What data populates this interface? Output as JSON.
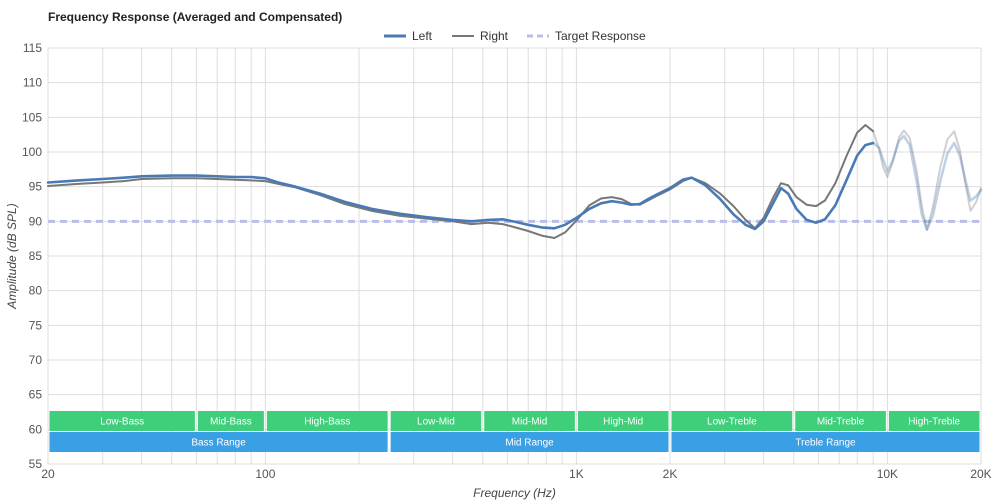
{
  "chart_data": {
    "type": "line",
    "title": "Frequency Response (Averaged and Compensated)",
    "xlabel": "Frequency (Hz)",
    "ylabel": "Amplitude (dB SPL)",
    "x_scale": "log",
    "xlim": [
      20,
      20000
    ],
    "ylim": [
      55,
      115
    ],
    "y_ticks": [
      55,
      60,
      65,
      70,
      75,
      80,
      85,
      90,
      95,
      100,
      105,
      110,
      115
    ],
    "x_ticks": [
      {
        "value": 20,
        "label": "20"
      },
      {
        "value": 100,
        "label": "100"
      },
      {
        "value": 1000,
        "label": "1K"
      },
      {
        "value": 2000,
        "label": "2K"
      },
      {
        "value": 10000,
        "label": "10K"
      },
      {
        "value": 20000,
        "label": "20K"
      }
    ],
    "legend": {
      "position": "top-center",
      "entries": [
        "Left",
        "Right",
        "Target Response"
      ]
    },
    "colors": {
      "left": "#4a7ab5",
      "right": "#777777",
      "target": "#b9bde8",
      "green_band": "#3fcf7a",
      "blue_band": "#3aa0e6"
    },
    "fade_start_hz": 9000,
    "series": [
      {
        "name": "Left",
        "points": [
          [
            20,
            95.6
          ],
          [
            25,
            95.9
          ],
          [
            30,
            96.1
          ],
          [
            35,
            96.3
          ],
          [
            40,
            96.5
          ],
          [
            50,
            96.6
          ],
          [
            60,
            96.6
          ],
          [
            70,
            96.5
          ],
          [
            80,
            96.4
          ],
          [
            90,
            96.4
          ],
          [
            100,
            96.2
          ],
          [
            110,
            95.6
          ],
          [
            125,
            95.0
          ],
          [
            150,
            94.0
          ],
          [
            180,
            92.8
          ],
          [
            220,
            91.8
          ],
          [
            270,
            91.1
          ],
          [
            330,
            90.6
          ],
          [
            400,
            90.2
          ],
          [
            460,
            90.0
          ],
          [
            520,
            90.2
          ],
          [
            580,
            90.3
          ],
          [
            640,
            89.9
          ],
          [
            700,
            89.5
          ],
          [
            780,
            89.1
          ],
          [
            850,
            89.0
          ],
          [
            920,
            89.5
          ],
          [
            1000,
            90.5
          ],
          [
            1100,
            91.8
          ],
          [
            1200,
            92.6
          ],
          [
            1300,
            92.9
          ],
          [
            1400,
            92.7
          ],
          [
            1500,
            92.4
          ],
          [
            1600,
            92.5
          ],
          [
            1700,
            93.2
          ],
          [
            1800,
            93.8
          ],
          [
            2000,
            94.8
          ],
          [
            2200,
            96.0
          ],
          [
            2350,
            96.3
          ],
          [
            2600,
            95.2
          ],
          [
            2900,
            93.2
          ],
          [
            3200,
            91.0
          ],
          [
            3500,
            89.5
          ],
          [
            3750,
            88.9
          ],
          [
            4000,
            90.0
          ],
          [
            4300,
            92.7
          ],
          [
            4550,
            94.8
          ],
          [
            4800,
            94.0
          ],
          [
            5100,
            91.8
          ],
          [
            5500,
            90.2
          ],
          [
            5900,
            89.8
          ],
          [
            6300,
            90.3
          ],
          [
            6800,
            92.3
          ],
          [
            7400,
            96.0
          ],
          [
            8000,
            99.5
          ],
          [
            8500,
            101.0
          ],
          [
            9000,
            101.3
          ],
          [
            9400,
            100.6
          ],
          [
            9700,
            98.8
          ],
          [
            10000,
            97.2
          ],
          [
            10400,
            98.8
          ],
          [
            10900,
            101.6
          ],
          [
            11300,
            102.3
          ],
          [
            11800,
            101.0
          ],
          [
            12400,
            96.0
          ],
          [
            12900,
            91.0
          ],
          [
            13400,
            88.8
          ],
          [
            14000,
            90.8
          ],
          [
            14800,
            95.8
          ],
          [
            15600,
            99.8
          ],
          [
            16400,
            101.3
          ],
          [
            17100,
            99.5
          ],
          [
            17800,
            96.0
          ],
          [
            18500,
            93.0
          ],
          [
            19300,
            93.6
          ],
          [
            20000,
            94.5
          ]
        ]
      },
      {
        "name": "Right",
        "points": [
          [
            20,
            95.1
          ],
          [
            25,
            95.4
          ],
          [
            30,
            95.6
          ],
          [
            35,
            95.8
          ],
          [
            40,
            96.1
          ],
          [
            50,
            96.2
          ],
          [
            60,
            96.2
          ],
          [
            70,
            96.1
          ],
          [
            80,
            96.0
          ],
          [
            90,
            95.9
          ],
          [
            100,
            95.8
          ],
          [
            110,
            95.4
          ],
          [
            125,
            94.9
          ],
          [
            150,
            93.8
          ],
          [
            180,
            92.5
          ],
          [
            220,
            91.5
          ],
          [
            270,
            90.8
          ],
          [
            330,
            90.4
          ],
          [
            400,
            90.0
          ],
          [
            460,
            89.6
          ],
          [
            520,
            89.8
          ],
          [
            580,
            89.6
          ],
          [
            640,
            89.1
          ],
          [
            700,
            88.6
          ],
          [
            780,
            87.9
          ],
          [
            850,
            87.6
          ],
          [
            920,
            88.4
          ],
          [
            1000,
            90.1
          ],
          [
            1100,
            92.3
          ],
          [
            1200,
            93.3
          ],
          [
            1300,
            93.5
          ],
          [
            1400,
            93.2
          ],
          [
            1500,
            92.5
          ],
          [
            1600,
            92.4
          ],
          [
            1700,
            93.0
          ],
          [
            1800,
            93.6
          ],
          [
            2000,
            94.6
          ],
          [
            2200,
            95.8
          ],
          [
            2350,
            96.3
          ],
          [
            2600,
            95.5
          ],
          [
            2900,
            94.0
          ],
          [
            3200,
            92.2
          ],
          [
            3500,
            90.2
          ],
          [
            3750,
            89.0
          ],
          [
            4000,
            90.5
          ],
          [
            4300,
            93.5
          ],
          [
            4550,
            95.5
          ],
          [
            4800,
            95.2
          ],
          [
            5100,
            93.5
          ],
          [
            5500,
            92.4
          ],
          [
            5900,
            92.2
          ],
          [
            6300,
            93.0
          ],
          [
            6800,
            95.5
          ],
          [
            7400,
            99.5
          ],
          [
            8000,
            102.8
          ],
          [
            8500,
            103.9
          ],
          [
            9000,
            103.0
          ],
          [
            9400,
            100.5
          ],
          [
            9700,
            97.7
          ],
          [
            10000,
            96.4
          ],
          [
            10400,
            98.5
          ],
          [
            10900,
            102.1
          ],
          [
            11300,
            103.1
          ],
          [
            11800,
            102.0
          ],
          [
            12400,
            97.5
          ],
          [
            12900,
            92.2
          ],
          [
            13400,
            88.8
          ],
          [
            14000,
            92.0
          ],
          [
            14800,
            97.8
          ],
          [
            15600,
            101.8
          ],
          [
            16400,
            103.0
          ],
          [
            17100,
            100.3
          ],
          [
            17800,
            95.5
          ],
          [
            18500,
            91.5
          ],
          [
            19300,
            92.8
          ],
          [
            20000,
            94.8
          ]
        ]
      },
      {
        "name": "Target Response",
        "points": [
          [
            20,
            90
          ],
          [
            20000,
            90
          ]
        ]
      }
    ],
    "bands_top": [
      {
        "label": "Low-Bass",
        "from": 20,
        "to": 60
      },
      {
        "label": "Mid-Bass",
        "from": 60,
        "to": 100
      },
      {
        "label": "High-Bass",
        "from": 100,
        "to": 250
      },
      {
        "label": "Low-Mid",
        "from": 250,
        "to": 500
      },
      {
        "label": "Mid-Mid",
        "from": 500,
        "to": 1000
      },
      {
        "label": "High-Mid",
        "from": 1000,
        "to": 2000
      },
      {
        "label": "Low-Treble",
        "from": 2000,
        "to": 5000
      },
      {
        "label": "Mid-Treble",
        "from": 5000,
        "to": 10000
      },
      {
        "label": "High-Treble",
        "from": 10000,
        "to": 20000
      }
    ],
    "bands_bottom": [
      {
        "label": "Bass Range",
        "from": 20,
        "to": 250
      },
      {
        "label": "Mid Range",
        "from": 250,
        "to": 2000
      },
      {
        "label": "Treble Range",
        "from": 2000,
        "to": 20000
      }
    ]
  }
}
